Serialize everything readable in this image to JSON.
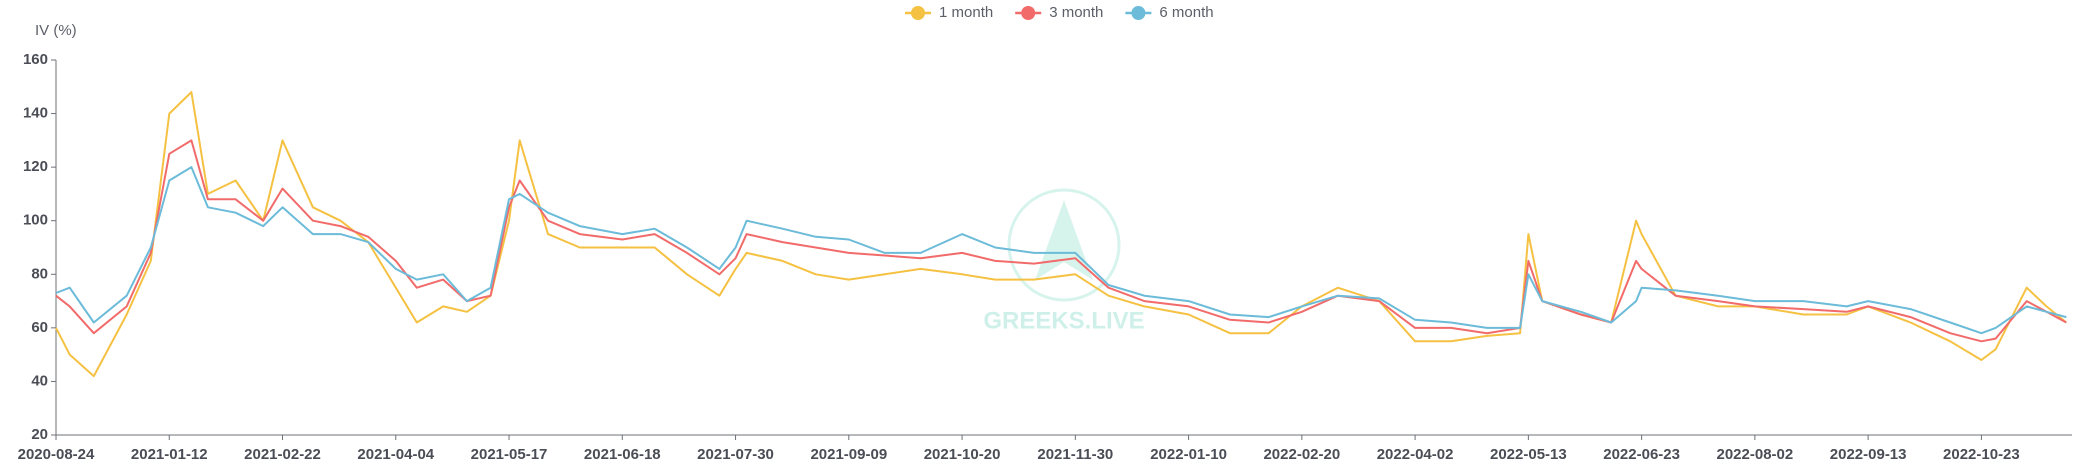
{
  "chart_data": {
    "type": "line",
    "y_label": "IV (%)",
    "watermark": "GREEKS.LIVE",
    "x": [
      "2020-08-24",
      "2020-09-10",
      "2020-10-10",
      "2020-11-20",
      "2020-12-20",
      "2021-01-12",
      "2021-01-20",
      "2021-01-26",
      "2021-02-05",
      "2021-02-15",
      "2021-02-22",
      "2021-03-05",
      "2021-03-15",
      "2021-03-25",
      "2021-04-04",
      "2021-04-12",
      "2021-04-22",
      "2021-05-01",
      "2021-05-10",
      "2021-05-17",
      "2021-05-20",
      "2021-05-28",
      "2021-06-06",
      "2021-06-18",
      "2021-06-30",
      "2021-07-12",
      "2021-07-24",
      "2021-07-30",
      "2021-08-03",
      "2021-08-16",
      "2021-08-28",
      "2021-09-09",
      "2021-09-22",
      "2021-10-05",
      "2021-10-20",
      "2021-11-01",
      "2021-11-15",
      "2021-11-30",
      "2021-12-12",
      "2021-12-25",
      "2022-01-10",
      "2022-01-25",
      "2022-02-08",
      "2022-02-20",
      "2022-03-05",
      "2022-03-20",
      "2022-04-02",
      "2022-04-15",
      "2022-04-28",
      "2022-05-10",
      "2022-05-13",
      "2022-05-18",
      "2022-06-01",
      "2022-06-12",
      "2022-06-21",
      "2022-06-23",
      "2022-07-05",
      "2022-07-20",
      "2022-08-02",
      "2022-08-20",
      "2022-09-05",
      "2022-09-13",
      "2022-09-28",
      "2022-10-12",
      "2022-10-23",
      "2022-10-28",
      "2022-11-08",
      "2022-11-15",
      "2022-11-22"
    ],
    "series": [
      {
        "name": "1 month",
        "color": "#f5c142",
        "values": [
          60,
          50,
          42,
          65,
          85,
          140,
          148,
          110,
          115,
          100,
          130,
          105,
          100,
          92,
          75,
          62,
          68,
          66,
          72,
          100,
          130,
          95,
          90,
          90,
          90,
          80,
          72,
          82,
          88,
          85,
          80,
          78,
          80,
          82,
          80,
          78,
          78,
          80,
          72,
          68,
          65,
          58,
          58,
          68,
          75,
          70,
          55,
          55,
          57,
          58,
          95,
          70,
          65,
          62,
          100,
          95,
          72,
          68,
          68,
          65,
          65,
          68,
          62,
          55,
          48,
          52,
          75,
          68,
          62
        ]
      },
      {
        "name": "3 month",
        "color": "#f26b6b",
        "values": [
          72,
          68,
          58,
          68,
          88,
          125,
          130,
          108,
          108,
          100,
          112,
          100,
          98,
          94,
          85,
          75,
          78,
          70,
          72,
          105,
          115,
          100,
          95,
          93,
          95,
          88,
          80,
          86,
          95,
          92,
          90,
          88,
          87,
          86,
          88,
          85,
          84,
          86,
          75,
          70,
          68,
          63,
          62,
          66,
          72,
          70,
          60,
          60,
          58,
          60,
          85,
          70,
          65,
          62,
          85,
          82,
          72,
          70,
          68,
          67,
          66,
          68,
          64,
          58,
          55,
          56,
          70,
          66,
          62
        ]
      },
      {
        "name": "6 month",
        "color": "#6bbbd9",
        "values": [
          73,
          75,
          62,
          72,
          90,
          115,
          120,
          105,
          103,
          98,
          105,
          95,
          95,
          92,
          82,
          78,
          80,
          70,
          75,
          108,
          110,
          103,
          98,
          95,
          97,
          90,
          82,
          90,
          100,
          97,
          94,
          93,
          88,
          88,
          95,
          90,
          88,
          88,
          76,
          72,
          70,
          65,
          64,
          68,
          72,
          71,
          63,
          62,
          60,
          60,
          80,
          70,
          66,
          62,
          70,
          75,
          74,
          72,
          70,
          70,
          68,
          70,
          67,
          62,
          58,
          60,
          68,
          66,
          64
        ]
      }
    ],
    "xlim": [
      "2020-08-24",
      "2022-11-24"
    ],
    "xticks": [
      "2020-08-24",
      "2021-01-12",
      "2021-02-22",
      "2021-04-04",
      "2021-05-17",
      "2021-06-18",
      "2021-07-30",
      "2021-09-09",
      "2021-10-20",
      "2021-11-30",
      "2022-01-10",
      "2022-02-20",
      "2022-04-02",
      "2022-05-13",
      "2022-06-23",
      "2022-08-02",
      "2022-09-13",
      "2022-10-23"
    ],
    "ylim": [
      20,
      160
    ],
    "yticks": [
      20,
      40,
      60,
      80,
      100,
      120,
      140,
      160
    ],
    "legend": "top"
  }
}
